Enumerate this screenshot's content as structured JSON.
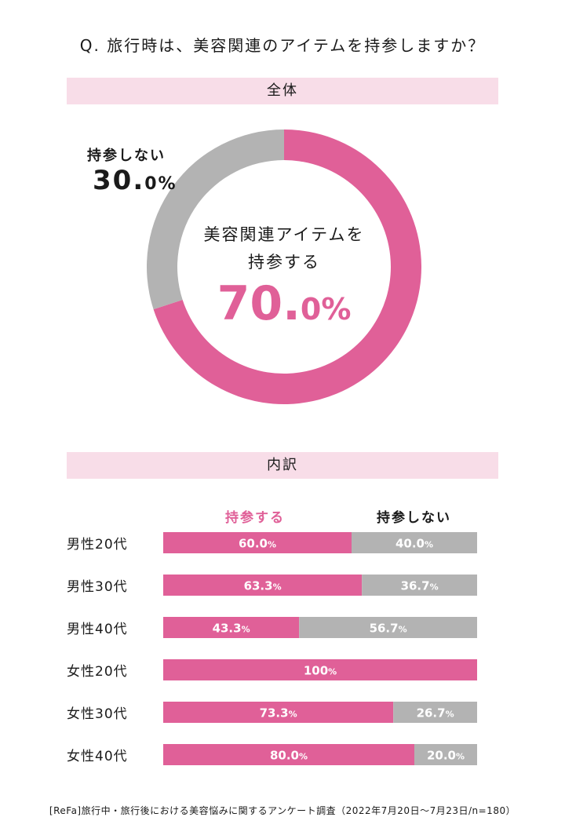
{
  "question": "Q. 旅行時は、美容関連のアイテムを持参しますか？",
  "sections": {
    "overall_label": "全体",
    "breakdown_label": "内訳"
  },
  "colors": {
    "bring": "#e06098",
    "not_bring": "#b3b3b3",
    "band": "#f8dde8"
  },
  "overall": {
    "center_line1": "美容関連アイテムを",
    "center_line2": "持参する",
    "bring_int": "70.",
    "bring_dec": "0%",
    "not_bring_label": "持参しない",
    "not_bring_int": "30.",
    "not_bring_dec": "0%"
  },
  "legend": {
    "bring": "持参する",
    "not_bring": "持参しない"
  },
  "footnote": "[ReFa]旅行中・旅行後における美容悩みに関するアンケート調査（2022年7月20日～7月23日/n=180）",
  "chart_data": [
    {
      "type": "pie",
      "title": "全体",
      "labels": [
        "持参する",
        "持参しない"
      ],
      "values": [
        70.0,
        30.0
      ]
    },
    {
      "type": "bar",
      "title": "内訳",
      "stacked": true,
      "orientation": "horizontal",
      "categories": [
        "男性20代",
        "男性30代",
        "男性40代",
        "女性20代",
        "女性30代",
        "女性40代"
      ],
      "series": [
        {
          "name": "持参する",
          "values": [
            60.0,
            63.3,
            43.3,
            100,
            73.3,
            80.0
          ],
          "labels": [
            "60.0%",
            "63.3%",
            "43.3%",
            "100%",
            "73.3%",
            "80.0%"
          ]
        },
        {
          "name": "持参しない",
          "values": [
            40.0,
            36.7,
            56.7,
            0,
            26.7,
            20.0
          ],
          "labels": [
            "40.0%",
            "36.7%",
            "56.7%",
            "",
            "26.7%",
            "20.0%"
          ]
        }
      ],
      "xlim": [
        0,
        100
      ]
    }
  ]
}
